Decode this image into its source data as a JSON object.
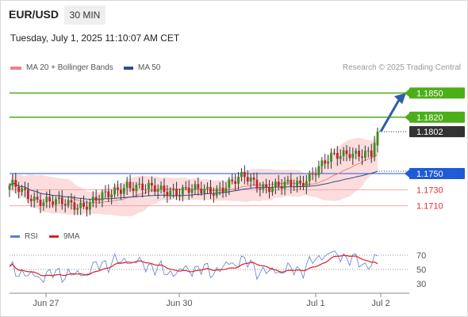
{
  "header": {
    "symbol": "EUR/USD",
    "timeframe": "30 MIN",
    "datetime": "Tuesday, July 1, 2025 11:10:07 AM CET"
  },
  "legend": {
    "ma20_label": "MA 20 + Bollinger Bands",
    "ma20_color": "#f08080",
    "ma50_label": "MA 50",
    "ma50_color": "#2c4f8f",
    "credit": "Research © 2025 Trading Central"
  },
  "rsi_legend": {
    "rsi_label": "RSI",
    "rsi_color": "#5b7fd6",
    "ma9_label": "9MA",
    "ma9_color": "#e02020"
  },
  "chart_data": [
    {
      "type": "candlestick",
      "title": "",
      "symbol": "EUR/USD",
      "interval": "30 MIN",
      "x_tick_labels": [
        "Jun 27",
        "Jun 30",
        "Jul 1",
        "Jul 2"
      ],
      "ylim": [
        1.169,
        1.187
      ],
      "candle_count": 120,
      "candles_start": {
        "open": 1.173,
        "close": 1.1735
      },
      "candles_end": {
        "open": 1.1785,
        "close": 1.1802
      },
      "levels": [
        {
          "value": 1.185,
          "label": "1.1850",
          "color": "#4caf1a",
          "type": "resistance-target"
        },
        {
          "value": 1.182,
          "label": "1.1820",
          "color": "#4caf1a",
          "type": "resistance"
        },
        {
          "value": 1.1802,
          "label": "1.1802",
          "color": "#333333",
          "type": "last-price"
        },
        {
          "value": 1.175,
          "label": "1.1750",
          "color": "#1e5bd6",
          "type": "pivot"
        },
        {
          "value": 1.173,
          "label": "1.1730",
          "color": "#e03030",
          "type": "support"
        },
        {
          "value": 1.171,
          "label": "1.1710",
          "color": "#e03030",
          "type": "support"
        }
      ],
      "arrow": {
        "from": 1.1802,
        "to": 1.185,
        "direction": "up",
        "color": "#2c5fa8"
      },
      "overlays": [
        "MA 20 + Bollinger Bands",
        "MA 50"
      ],
      "grid": false
    },
    {
      "type": "line",
      "title": "",
      "series": [
        {
          "name": "RSI",
          "color": "#5b7fd6"
        },
        {
          "name": "9MA",
          "color": "#e02020"
        }
      ],
      "y_tick_labels": [
        "70",
        "50",
        "30"
      ],
      "ylim": [
        20,
        80
      ],
      "rsi_last": 69,
      "ma9_last": 58
    }
  ]
}
